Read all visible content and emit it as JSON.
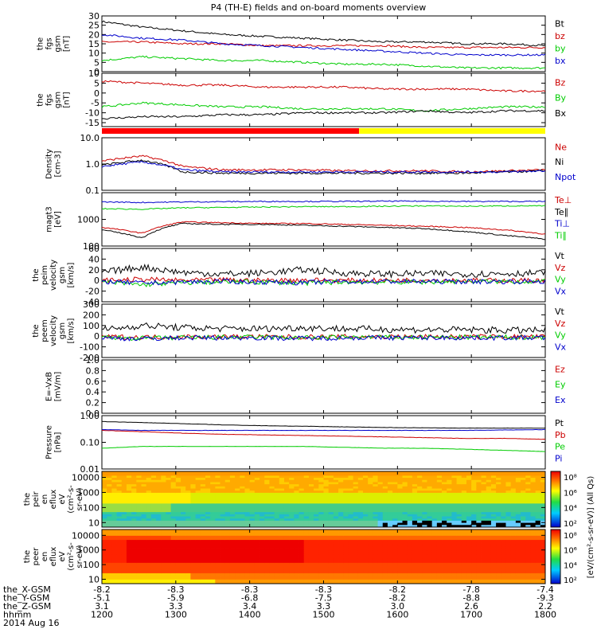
{
  "title": "P4 (TH-E) fields and on-board moments overview",
  "footer": {
    "date": "2014 Aug 16"
  },
  "colorbar": {
    "label": "[eV/(cm²-s-sr-eV)] (All Qs)",
    "ticks": [
      "10⁸",
      "10⁶",
      "10⁴",
      "10²"
    ],
    "ticks_lower": [
      "10⁸",
      "10⁶",
      "10⁴",
      "10²"
    ]
  },
  "chart_data": [
    {
      "panel": "fgs_gsm_total",
      "type": "line",
      "ylabel": [
        "the",
        "fgs",
        "gsm",
        "[nT]"
      ],
      "ylim": [
        0,
        30
      ],
      "yticks": [
        "0",
        "5",
        "10",
        "15",
        "20",
        "25",
        "30"
      ],
      "series": [
        {
          "name": "Bt",
          "color": "#000000",
          "values": [
            27,
            24,
            22,
            20,
            19,
            18,
            17,
            16,
            16,
            15,
            15,
            14
          ]
        },
        {
          "name": "bz",
          "color": "#cc0000",
          "values": [
            16,
            16,
            15,
            15,
            14,
            14,
            14,
            14,
            13,
            13,
            13,
            13
          ]
        },
        {
          "name": "by",
          "color": "#00cc00",
          "values": [
            6,
            8,
            7,
            6,
            6,
            5,
            4,
            4,
            3,
            2,
            2,
            2
          ]
        },
        {
          "name": "bx",
          "color": "#0000cc",
          "values": [
            20,
            18,
            17,
            15,
            14,
            13,
            12,
            11,
            10,
            9,
            9,
            9
          ]
        }
      ]
    },
    {
      "panel": "fgs_gsm_components",
      "type": "line",
      "ylabel": [
        "the",
        "fgs",
        "gsm",
        "[nT]"
      ],
      "ylim": [
        -17,
        10
      ],
      "yticks": [
        "-15",
        "-10",
        "-5",
        "0",
        "5",
        "10"
      ],
      "series": [
        {
          "name": "Bz",
          "color": "#cc0000",
          "values": [
            6,
            5,
            4,
            4,
            3,
            3,
            3,
            2,
            2,
            2,
            1,
            1
          ]
        },
        {
          "name": "By",
          "color": "#00cc00",
          "values": [
            -7,
            -5,
            -6,
            -7,
            -7,
            -8,
            -8,
            -8,
            -9,
            -8,
            -7,
            -7
          ]
        },
        {
          "name": "Bx",
          "color": "#000000",
          "values": [
            -13,
            -12,
            -12,
            -11,
            -11,
            -10,
            -10,
            -10,
            -9,
            -10,
            -9,
            -9
          ]
        }
      ]
    },
    {
      "panel": "density",
      "type": "line",
      "ylabel": [
        "Density",
        "[cm-3]"
      ],
      "ylim": [
        0.1,
        10
      ],
      "scale": "log",
      "yticks": [
        "0.1",
        "1.0",
        "10.0"
      ],
      "series": [
        {
          "name": "Ne",
          "color": "#cc0000",
          "values": [
            1.3,
            2.0,
            0.8,
            0.6,
            0.6,
            0.6,
            0.55,
            0.55,
            0.55,
            0.5,
            0.55,
            0.6
          ]
        },
        {
          "name": "Ni",
          "color": "#000000",
          "values": [
            0.9,
            1.4,
            0.5,
            0.45,
            0.45,
            0.45,
            0.45,
            0.45,
            0.45,
            0.45,
            0.5,
            0.55
          ]
        },
        {
          "name": "Npot",
          "color": "#0000cc",
          "values": [
            0.8,
            1.2,
            0.6,
            0.5,
            0.5,
            0.5,
            0.5,
            0.5,
            0.5,
            0.5,
            0.5,
            0.55
          ]
        }
      ]
    },
    {
      "panel": "temperature",
      "type": "line",
      "ylabel": [
        "magt3",
        "[eV]"
      ],
      "ylim": [
        100,
        10000
      ],
      "scale": "log",
      "yticks": [
        "100",
        "1000"
      ],
      "series": [
        {
          "name": "Te⊥",
          "color": "#cc0000",
          "values": [
            500,
            300,
            800,
            750,
            700,
            700,
            650,
            600,
            550,
            500,
            400,
            280
          ]
        },
        {
          "name": "Te∥",
          "color": "#000000",
          "values": [
            400,
            200,
            700,
            650,
            650,
            600,
            550,
            500,
            450,
            350,
            250,
            180
          ]
        },
        {
          "name": "Ti⊥",
          "color": "#0000cc",
          "values": [
            4500,
            4300,
            4500,
            4600,
            4700,
            4700,
            4700,
            4800,
            4800,
            4700,
            4700,
            4700
          ]
        },
        {
          "name": "Ti∥",
          "color": "#00cc00",
          "values": [
            2500,
            2400,
            2700,
            2800,
            2900,
            3000,
            3000,
            3100,
            3200,
            3100,
            3200,
            3200
          ]
        }
      ]
    },
    {
      "panel": "peim_velocity",
      "type": "line",
      "ylabel": [
        "the",
        "peim",
        "velocity",
        "gsm",
        "[km/s]"
      ],
      "ylim": [
        -40,
        60
      ],
      "yticks": [
        "-40",
        "-20",
        "0",
        "20",
        "40",
        "60"
      ],
      "series": [
        {
          "name": "Vt",
          "color": "#000000",
          "values": [
            15,
            25,
            15,
            12,
            14,
            20,
            14,
            12,
            13,
            12,
            13,
            14
          ]
        },
        {
          "name": "Vz",
          "color": "#cc0000",
          "values": [
            0,
            2,
            0,
            1,
            0,
            1,
            0,
            0,
            1,
            0,
            0,
            0
          ]
        },
        {
          "name": "Vy",
          "color": "#00cc00",
          "values": [
            -3,
            -8,
            -4,
            -3,
            -3,
            -5,
            -3,
            -3,
            -3,
            -2,
            -2,
            -2
          ]
        },
        {
          "name": "Vx",
          "color": "#0000cc",
          "values": [
            -2,
            -5,
            -3,
            -2,
            -3,
            -4,
            -2,
            -2,
            -2,
            -2,
            -2,
            -2
          ]
        }
      ]
    },
    {
      "panel": "peem_velocity",
      "type": "line",
      "ylabel": [
        "the",
        "peem",
        "velocity",
        "gsm",
        "[km/s]"
      ],
      "ylim": [
        -200,
        300
      ],
      "yticks": [
        "-200",
        "-100",
        "0",
        "100",
        "200",
        "300"
      ],
      "series": [
        {
          "name": "Vt",
          "color": "#000000",
          "values": [
            60,
            100,
            80,
            70,
            70,
            80,
            70,
            65,
            60,
            60,
            55,
            55
          ]
        },
        {
          "name": "Vz",
          "color": "#cc0000",
          "values": [
            -5,
            -10,
            -5,
            -5,
            -5,
            -8,
            -5,
            -5,
            -5,
            -5,
            -5,
            -5
          ]
        },
        {
          "name": "Vy",
          "color": "#00cc00",
          "values": [
            -10,
            -20,
            -15,
            -10,
            -10,
            -15,
            -10,
            -10,
            -10,
            -10,
            -10,
            -10
          ]
        },
        {
          "name": "Vx",
          "color": "#0000cc",
          "values": [
            -15,
            -25,
            -15,
            -15,
            -15,
            -20,
            -15,
            -15,
            -15,
            -15,
            -15,
            -15
          ]
        }
      ]
    },
    {
      "panel": "efield",
      "type": "line",
      "ylabel": [
        "E=-VxB",
        "[mV/m]"
      ],
      "ylim": [
        0,
        1
      ],
      "yticks": [
        "0.0",
        "0.2",
        "0.4",
        "0.6",
        "0.8",
        "1.0"
      ],
      "series": [
        {
          "name": "Ez",
          "color": "#cc0000",
          "values": []
        },
        {
          "name": "Ey",
          "color": "#00cc00",
          "values": []
        },
        {
          "name": "Ex",
          "color": "#0000cc",
          "values": []
        }
      ]
    },
    {
      "panel": "pressure",
      "type": "line",
      "ylabel": [
        "Pressure",
        "[nPa]"
      ],
      "ylim": [
        0.01,
        1
      ],
      "scale": "log",
      "yticks": [
        "0.01",
        "0.10",
        "1.00"
      ],
      "series": [
        {
          "name": "Pt",
          "color": "#000000",
          "values": [
            0.6,
            0.55,
            0.5,
            0.45,
            0.42,
            0.4,
            0.38,
            0.36,
            0.35,
            0.34,
            0.34,
            0.34
          ]
        },
        {
          "name": "Pb",
          "color": "#cc0000",
          "values": [
            0.28,
            0.25,
            0.22,
            0.2,
            0.19,
            0.18,
            0.17,
            0.16,
            0.15,
            0.14,
            0.14,
            0.13
          ]
        },
        {
          "name": "Pe",
          "color": "#00cc00",
          "values": [
            0.06,
            0.07,
            0.07,
            0.07,
            0.07,
            0.07,
            0.065,
            0.06,
            0.06,
            0.055,
            0.05,
            0.045
          ]
        },
        {
          "name": "Pi",
          "color": "#0000cc",
          "values": [
            0.3,
            0.28,
            0.28,
            0.28,
            0.28,
            0.28,
            0.28,
            0.28,
            0.28,
            0.28,
            0.29,
            0.3
          ]
        }
      ]
    },
    {
      "panel": "peir_en_eflux",
      "type": "heatmap",
      "ylabel": [
        "the",
        "peir",
        "en",
        "eflux",
        "eV",
        "(cm²-s-",
        "sr-eV)"
      ],
      "ylim": [
        5,
        25000
      ],
      "scale": "log",
      "yticks": [
        "10",
        "100",
        "1000",
        "10000"
      ]
    },
    {
      "panel": "peer_en_eflux",
      "type": "heatmap",
      "ylabel": [
        "the",
        "peer",
        "en",
        "eflux",
        "eV",
        "(cm²-s-",
        "sr-eV)"
      ],
      "ylim": [
        5,
        25000
      ],
      "scale": "log",
      "yticks": [
        "10",
        "100",
        "1000",
        "10000"
      ]
    }
  ],
  "time_axis": {
    "rows": [
      {
        "label": "the_X-GSM",
        "values": [
          "-8.2",
          "-8.3",
          "-8.3",
          "-8.3",
          "-8.2",
          "-7.8",
          "-7.4"
        ]
      },
      {
        "label": "the_Y-GSM",
        "values": [
          "-5.1",
          "-5.9",
          "-6.8",
          "-7.5",
          "-8.2",
          "-8.8",
          "-9.3"
        ]
      },
      {
        "label": "the_Z-GSM",
        "values": [
          "3.1",
          "3.3",
          "3.4",
          "3.3",
          "3.0",
          "2.6",
          "2.2"
        ]
      },
      {
        "label": "hhmm",
        "values": [
          "1200",
          "1300",
          "1400",
          "1500",
          "1600",
          "1700",
          "1800"
        ]
      }
    ]
  },
  "mode_bar": {
    "red_fraction": 0.58,
    "colors": [
      "#ff0000",
      "#ffff00"
    ]
  }
}
